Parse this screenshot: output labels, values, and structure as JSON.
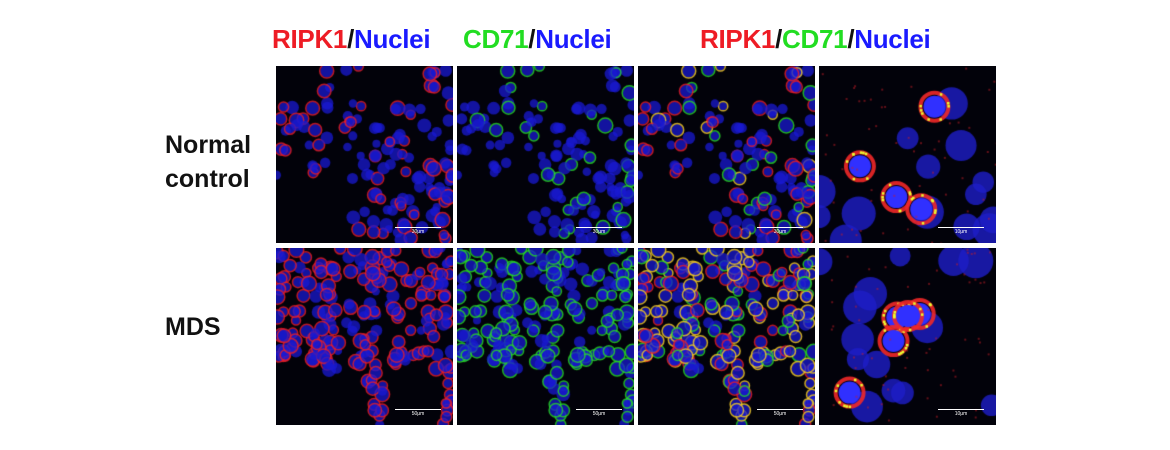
{
  "column_headers": [
    {
      "parts": [
        {
          "text": "RIPK1",
          "color": "red"
        },
        {
          "text": "/",
          "color": "black"
        },
        {
          "text": "Nuclei",
          "color": "blue"
        }
      ]
    },
    {
      "parts": [
        {
          "text": "CD71",
          "color": "green"
        },
        {
          "text": "/",
          "color": "black"
        },
        {
          "text": "Nuclei",
          "color": "blue"
        }
      ]
    },
    {
      "parts": [
        {
          "text": "RIPK1",
          "color": "red"
        },
        {
          "text": "/",
          "color": "black"
        },
        {
          "text": "CD71",
          "color": "green"
        },
        {
          "text": "/",
          "color": "black"
        },
        {
          "text": "Nuclei",
          "color": "blue"
        }
      ]
    }
  ],
  "rows": [
    {
      "label_line1": "Normal",
      "label_line2": "control",
      "scale_labels": [
        "30μm",
        "30μm",
        "30μm",
        "10μm"
      ]
    },
    {
      "label_line1": "MDS",
      "label_line2": "",
      "scale_labels": [
        "50μm",
        "50μm",
        "50μm",
        "10μm"
      ]
    }
  ],
  "channel_colors": {
    "red": "#ee1c25",
    "green": "#22dd22",
    "blue": "#1a1aff"
  }
}
